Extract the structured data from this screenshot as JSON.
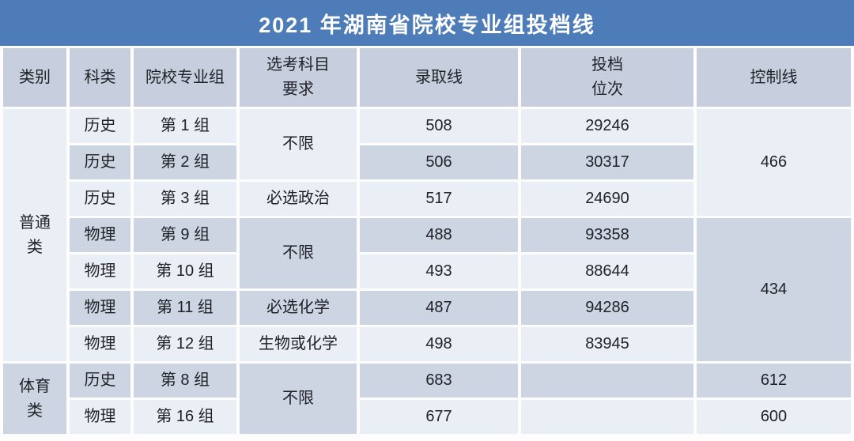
{
  "title": "2021 年湖南省院校专业组投档线",
  "colors": {
    "title_bg": "#4e7cb8",
    "title_text": "#ffffff",
    "header_bg": "#c7cedd",
    "row_light": "#eaeef5",
    "row_dark": "#cdd4e2",
    "cell_text": "#1f2126",
    "gap": "#fdfdfd"
  },
  "header": {
    "category": "类别",
    "subject": "科类",
    "group": "院校专业组",
    "requirement": "选考科目\n要求",
    "admission": "录取线",
    "rank": "投档\n位次",
    "control": "控制线"
  },
  "rows": [
    {
      "subject": "历史",
      "group": "第 1 组",
      "admission": "508",
      "rank": "29246"
    },
    {
      "subject": "历史",
      "group": "第 2 组",
      "admission": "506",
      "rank": "30317"
    },
    {
      "subject": "历史",
      "group": "第 3 组",
      "admission": "517",
      "rank": "24690"
    },
    {
      "subject": "物理",
      "group": "第 9 组",
      "admission": "488",
      "rank": "93358"
    },
    {
      "subject": "物理",
      "group": "第 10 组",
      "admission": "493",
      "rank": "88644"
    },
    {
      "subject": "物理",
      "group": "第 11 组",
      "admission": "487",
      "rank": "94286"
    },
    {
      "subject": "物理",
      "group": "第 12 组",
      "admission": "498",
      "rank": "83945"
    },
    {
      "subject": "历史",
      "group": "第 8 组",
      "admission": "683",
      "rank": ""
    },
    {
      "subject": "物理",
      "group": "第 16 组",
      "admission": "677",
      "rank": ""
    }
  ],
  "merged": {
    "categories": [
      {
        "label": "普通\n类",
        "rowspan": 7
      },
      {
        "label": "体育\n类",
        "rowspan": 2
      }
    ],
    "requirements": [
      {
        "label": "不限",
        "rowspan": 2
      },
      {
        "label": "必选政治",
        "rowspan": 1
      },
      {
        "label": "不限",
        "rowspan": 2
      },
      {
        "label": "必选化学",
        "rowspan": 1
      },
      {
        "label": "生物或化学",
        "rowspan": 1
      },
      {
        "label": "不限",
        "rowspan": 2
      }
    ],
    "controls": [
      {
        "label": "466",
        "rowspan": 3
      },
      {
        "label": "434",
        "rowspan": 4
      },
      {
        "label": "612",
        "rowspan": 1
      },
      {
        "label": "600",
        "rowspan": 1
      }
    ]
  },
  "chart_data": {
    "type": "table",
    "title": "2021 年湖南省院校专业组投档线",
    "columns": [
      "类别",
      "科类",
      "院校专业组",
      "选考科目要求",
      "录取线",
      "投档位次",
      "控制线"
    ],
    "rows": [
      [
        "普通类",
        "历史",
        "第 1 组",
        "不限",
        "508",
        "29246",
        "466"
      ],
      [
        "普通类",
        "历史",
        "第 2 组",
        "不限",
        "506",
        "30317",
        "466"
      ],
      [
        "普通类",
        "历史",
        "第 3 组",
        "必选政治",
        "517",
        "24690",
        "466"
      ],
      [
        "普通类",
        "物理",
        "第 9 组",
        "不限",
        "488",
        "93358",
        "434"
      ],
      [
        "普通类",
        "物理",
        "第 10 组",
        "不限",
        "493",
        "88644",
        "434"
      ],
      [
        "普通类",
        "物理",
        "第 11 组",
        "必选化学",
        "487",
        "94286",
        "434"
      ],
      [
        "普通类",
        "物理",
        "第 12 组",
        "生物或化学",
        "498",
        "83945",
        "434"
      ],
      [
        "体育类",
        "历史",
        "第 8 组",
        "不限",
        "683",
        "",
        "612"
      ],
      [
        "体育类",
        "物理",
        "第 16 组",
        "不限",
        "677",
        "",
        "600"
      ]
    ]
  }
}
